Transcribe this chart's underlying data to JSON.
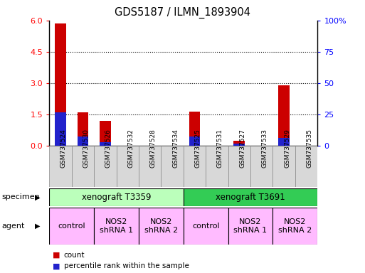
{
  "title": "GDS5187 / ILMN_1893904",
  "samples": [
    "GSM737524",
    "GSM737530",
    "GSM737526",
    "GSM737532",
    "GSM737528",
    "GSM737534",
    "GSM737525",
    "GSM737531",
    "GSM737527",
    "GSM737533",
    "GSM737529",
    "GSM737535"
  ],
  "count_values": [
    5.85,
    1.6,
    1.2,
    0.0,
    0.0,
    0.0,
    1.65,
    0.0,
    0.25,
    0.0,
    2.9,
    0.0
  ],
  "percentile_values_pct": [
    27,
    7.5,
    3.3,
    0.0,
    0.0,
    0.0,
    7.5,
    0.0,
    2.0,
    0.0,
    6.3,
    0.0
  ],
  "ylim_left": [
    0,
    6
  ],
  "ylim_right": [
    0,
    100
  ],
  "yticks_left": [
    0,
    1.5,
    3,
    4.5,
    6
  ],
  "yticks_right": [
    0,
    25,
    50,
    75,
    100
  ],
  "bar_color_red": "#cc0000",
  "bar_color_blue": "#2222cc",
  "bar_width": 0.5,
  "specimen_row": [
    {
      "label": "xenograft T3359",
      "start": 0,
      "end": 6,
      "color": "#bbffbb"
    },
    {
      "label": "xenograft T3691",
      "start": 6,
      "end": 12,
      "color": "#33cc55"
    }
  ],
  "agent_row": [
    {
      "label": "control",
      "start": 0,
      "end": 2,
      "color": "#ffbbff"
    },
    {
      "label": "NOS2\nshRNA 1",
      "start": 2,
      "end": 4,
      "color": "#ffbbff"
    },
    {
      "label": "NOS2\nshRNA 2",
      "start": 4,
      "end": 6,
      "color": "#ffbbff"
    },
    {
      "label": "control",
      "start": 6,
      "end": 8,
      "color": "#ffbbff"
    },
    {
      "label": "NOS2\nshRNA 1",
      "start": 8,
      "end": 10,
      "color": "#ffbbff"
    },
    {
      "label": "NOS2\nshRNA 2",
      "start": 10,
      "end": 12,
      "color": "#ffbbff"
    }
  ],
  "legend_count_label": "count",
  "legend_pct_label": "percentile rank within the sample",
  "specimen_label": "specimen",
  "agent_label": "agent",
  "fig_bg": "#ffffff",
  "fig_width": 5.13,
  "fig_height": 3.84,
  "dpi": 100
}
